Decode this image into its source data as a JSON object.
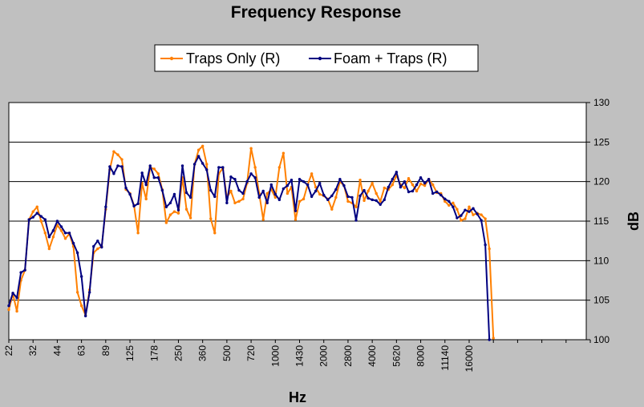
{
  "chart_data": {
    "type": "line",
    "title": "Frequency Response",
    "xlabel": "Hz",
    "ylabel": "dB",
    "ylim": [
      100,
      130
    ],
    "yticks": [
      100,
      105,
      110,
      115,
      120,
      125,
      130
    ],
    "xtick_labels": [
      "22",
      "32",
      "44",
      "63",
      "89",
      "125",
      "178",
      "250",
      "360",
      "500",
      "720",
      "1000",
      "1430",
      "2000",
      "2800",
      "4000",
      "5620",
      "8000",
      "11140",
      "16000"
    ],
    "x_domain": [
      0,
      143
    ],
    "grid": "horizontal",
    "legend_position": "top",
    "series": [
      {
        "name": "Traps Only (R)",
        "color": "#ff8000",
        "values": [
          103.8,
          105.8,
          103.6,
          107.5,
          108.8,
          115.2,
          116.2,
          116.8,
          115,
          113.5,
          111.5,
          113,
          114.5,
          113.8,
          112.8,
          113.4,
          111.8,
          106,
          104.3,
          103.1,
          106.3,
          111,
          111.5,
          111.8,
          116.5,
          121.5,
          123.8,
          123.4,
          122.8,
          119,
          118.5,
          117,
          113.5,
          119.8,
          117.8,
          121.8,
          121.6,
          121,
          119,
          114.8,
          115.8,
          116.2,
          116,
          120.5,
          116.5,
          115.4,
          122.2,
          124,
          124.5,
          122.2,
          115.3,
          113.5,
          121,
          121.7,
          118,
          118.8,
          117.3,
          117.5,
          117.8,
          119.8,
          124.2,
          121.8,
          118.5,
          115.2,
          118.5,
          119,
          118,
          121.8,
          123.6,
          118.5,
          119.3,
          115.2,
          117.5,
          117.8,
          119.6,
          121,
          119.3,
          118.4,
          118.2,
          117.8,
          116.5,
          118,
          120,
          119.5,
          117.5,
          117.3,
          116.8,
          120.2,
          117.6,
          118.8,
          119.8,
          118.5,
          117.5,
          119.2,
          119,
          119.6,
          120.8,
          119.6,
          119.2,
          120.4,
          119.6,
          118.8,
          119.7,
          119.5,
          120.3,
          119.6,
          118.6,
          118.5,
          117.5,
          117,
          117.3,
          116.5,
          115.1,
          115.3,
          116.8,
          115.8,
          116,
          115.8,
          115.3,
          111.5,
          100.2
        ],
        "x": [
          0,
          1,
          2,
          3,
          4,
          5,
          6,
          7,
          8,
          9,
          10,
          11,
          12,
          13,
          14,
          15,
          16,
          17,
          18,
          19,
          20,
          21,
          22,
          23,
          24,
          25,
          26,
          27,
          28,
          29,
          30,
          31,
          32,
          33,
          34,
          35,
          36,
          37,
          38,
          39,
          40,
          41,
          42,
          43,
          44,
          45,
          46,
          47,
          48,
          49,
          50,
          51,
          52,
          53,
          54,
          55,
          56,
          57,
          58,
          59,
          60,
          61,
          62,
          63,
          64,
          65,
          66,
          67,
          68,
          69,
          70,
          71,
          72,
          73,
          74,
          75,
          76,
          77,
          78,
          79,
          80,
          81,
          82,
          83,
          84,
          85,
          86,
          87,
          88,
          89,
          90,
          91,
          92,
          93,
          94,
          95,
          96,
          97,
          98,
          99,
          100,
          101,
          102,
          103,
          104,
          105,
          106,
          107,
          108,
          109,
          110,
          111,
          112,
          113,
          114,
          115,
          116,
          117,
          118,
          119,
          120
        ]
      },
      {
        "name": "Foam + Traps (R)",
        "color": "#000080",
        "values": [
          104.3,
          105.9,
          105.3,
          108.5,
          108.8,
          115.2,
          115.5,
          116,
          115.6,
          115.2,
          113,
          113.8,
          115,
          114.3,
          113.5,
          113.5,
          112.2,
          111,
          108,
          103,
          106,
          111.8,
          112.5,
          111.7,
          116.8,
          121.9,
          121,
          122,
          121.9,
          119.2,
          118.4,
          116.9,
          117.2,
          121.1,
          119.6,
          122,
          120.5,
          120.5,
          118.9,
          116.8,
          117.3,
          118.4,
          116.4,
          122,
          118.6,
          118,
          122.2,
          123.2,
          122.3,
          121.5,
          118.9,
          118.1,
          121.8,
          121.8,
          117.3,
          120.6,
          120.3,
          118.9,
          118.5,
          120,
          121,
          120.5,
          118,
          118.8,
          117.3,
          119.6,
          118.4,
          117.7,
          119.1,
          119.5,
          120.2,
          116.3,
          120.3,
          120,
          119.6,
          118.1,
          118.8,
          119.8,
          118.3,
          117.7,
          118.2,
          119,
          120.3,
          119.5,
          118.1,
          118,
          115.1,
          118.2,
          118.9,
          117.9,
          117.7,
          117.6,
          117.1,
          117.7,
          119.3,
          120.3,
          121.2,
          119.3,
          120,
          118.7,
          118.8,
          119.6,
          120.5,
          119.8,
          120.3,
          118.5,
          118.7,
          118.3,
          117.8,
          117.5,
          116.8,
          115.4,
          115.7,
          116.4,
          116.2,
          116.6,
          115.9,
          115.1,
          112,
          100
        ]
      }
    ]
  }
}
